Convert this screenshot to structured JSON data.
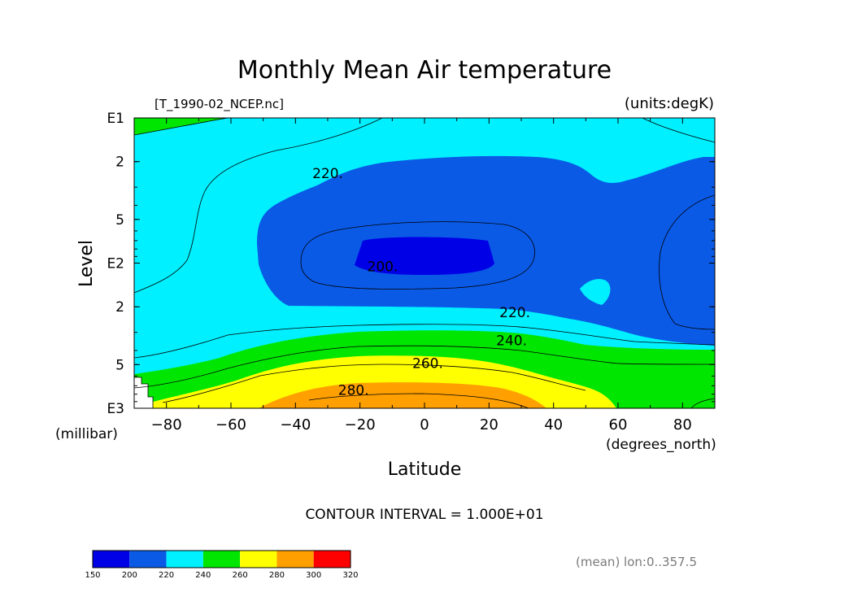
{
  "chart_data": {
    "type": "contour",
    "title": "Monthly Mean Air temperature",
    "source_file": "[T_1990-02_NCEP.nc]",
    "units_label": "(units:degK)",
    "xlabel": "Latitude",
    "xunit": "(degrees_north)",
    "ylabel": "Level",
    "yunit": "(millibar)",
    "xlim": [
      -90,
      90
    ],
    "ylim_mb": [
      1000,
      10
    ],
    "y_scale": "log",
    "x_ticks": [
      {
        "v": -80,
        "label": "−80"
      },
      {
        "v": -60,
        "label": "−60"
      },
      {
        "v": -40,
        "label": "−40"
      },
      {
        "v": -20,
        "label": "−20"
      },
      {
        "v": 0,
        "label": "0"
      },
      {
        "v": 20,
        "label": "20"
      },
      {
        "v": 40,
        "label": "40"
      },
      {
        "v": 60,
        "label": "60"
      },
      {
        "v": 80,
        "label": "80"
      }
    ],
    "y_ticks": [
      {
        "mb": 10,
        "label": "E1"
      },
      {
        "mb": 20,
        "label": "2"
      },
      {
        "mb": 50,
        "label": "5"
      },
      {
        "mb": 100,
        "label": "E2"
      },
      {
        "mb": 200,
        "label": "2"
      },
      {
        "mb": 500,
        "label": "5"
      },
      {
        "mb": 1000,
        "label": "E3"
      }
    ],
    "contour_interval": "CONTOUR INTERVAL = 1.000E+01",
    "contour_levels": [
      200,
      210,
      220,
      230,
      240,
      250,
      260,
      270,
      280,
      290
    ],
    "contour_labels": [
      {
        "text": "220.",
        "x": -30,
        "mb": 24
      },
      {
        "text": "200.",
        "x": -13,
        "mb": 105
      },
      {
        "text": "220.",
        "x": 28,
        "mb": 218
      },
      {
        "text": "240.",
        "x": 27,
        "mb": 340
      },
      {
        "text": "260.",
        "x": 1,
        "mb": 490
      },
      {
        "text": "280.",
        "x": -22,
        "mb": 750
      }
    ],
    "fill_bands": [
      {
        "range": [
          150,
          200
        ],
        "color": "#0000e6"
      },
      {
        "range": [
          200,
          220
        ],
        "color": "#0a5ae6"
      },
      {
        "range": [
          220,
          240
        ],
        "color": "#00f0ff"
      },
      {
        "range": [
          240,
          260
        ],
        "color": "#00e600"
      },
      {
        "range": [
          260,
          280
        ],
        "color": "#ffff00"
      },
      {
        "range": [
          280,
          300
        ],
        "color": "#ffa000"
      },
      {
        "range": [
          300,
          320
        ],
        "color": "#ff0000"
      }
    ],
    "colorbar_labels": [
      "150",
      "200",
      "220",
      "240",
      "260",
      "280",
      "300",
      "320"
    ],
    "footnote": "(mean) lon:0..357.5"
  }
}
